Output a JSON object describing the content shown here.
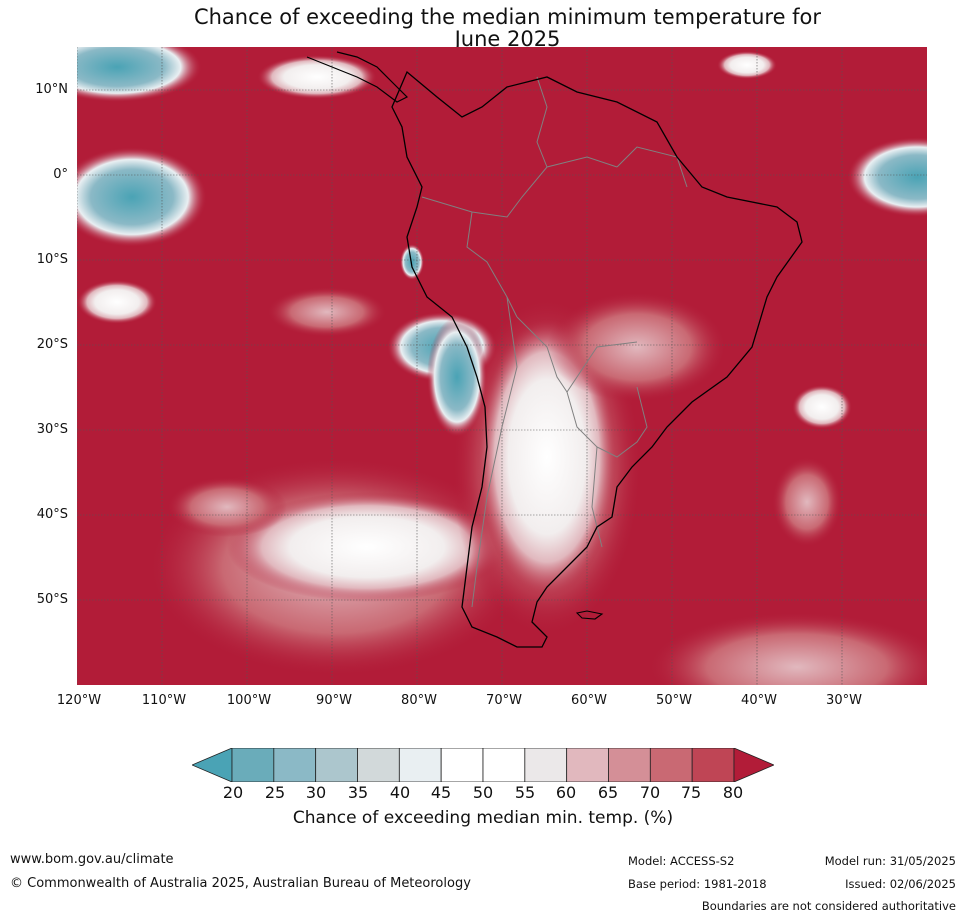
{
  "title": {
    "line1": "Chance of exceeding the median minimum temperature for",
    "line2": "June 2025"
  },
  "map": {
    "lat_labels": [
      "10°N",
      "0°",
      "10°S",
      "20°S",
      "30°S",
      "40°S",
      "50°S"
    ],
    "lon_labels": [
      "120°W",
      "110°W",
      "100°W",
      "90°W",
      "80°W",
      "70°W",
      "60°W",
      "50°W",
      "40°W",
      "30°W"
    ],
    "colors": {
      "ocean_high": "#b21c38",
      "land_outline": "#000000",
      "border_outline": "#808080",
      "grid": "#555555"
    }
  },
  "legend": {
    "ticks": [
      "20",
      "25",
      "30",
      "35",
      "40",
      "45",
      "50",
      "55",
      "60",
      "65",
      "70",
      "75",
      "80"
    ],
    "colors": [
      "#4aa3b5",
      "#6aacba",
      "#8bb9c6",
      "#acc6cd",
      "#d2d9da",
      "#e9eff2",
      "#ffffff",
      "#ffffff",
      "#ebe8e9",
      "#e1b8be",
      "#d48f97",
      "#c96973",
      "#bf4555",
      "#b21c38"
    ],
    "label": "Chance of exceeding median min. temp. (%)"
  },
  "footer": {
    "website": "www.bom.gov.au/climate",
    "copyright": "© Commonwealth of Australia 2025, Australian Bureau of Meteorology",
    "model": "Model: ACCESS-S2",
    "base_period": "Base period: 1981-2018",
    "model_run": "Model run: 31/05/2025",
    "issued": "Issued: 02/06/2025",
    "disclaimer": "Boundaries are not considered authoritative"
  }
}
